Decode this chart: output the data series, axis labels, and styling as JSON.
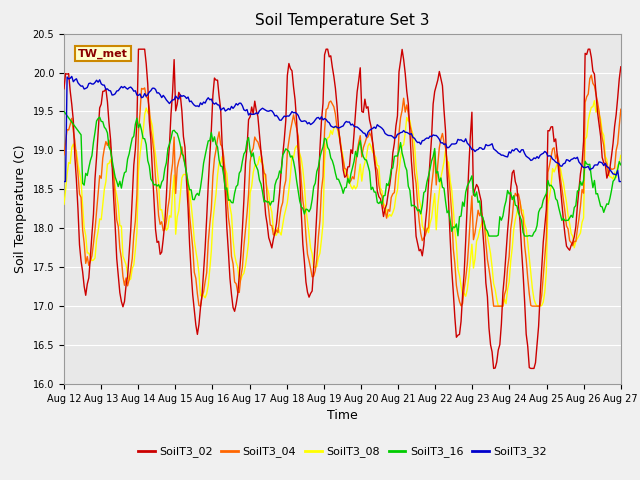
{
  "title": "Soil Temperature Set 3",
  "xlabel": "Time",
  "ylabel": "Soil Temperature (C)",
  "ylim": [
    16.0,
    20.5
  ],
  "ytick_labels": [
    "16.0",
    "16.5",
    "17.0",
    "17.5",
    "18.0",
    "18.5",
    "19.0",
    "19.5",
    "20.0",
    "20.5"
  ],
  "ytick_values": [
    16.0,
    16.5,
    17.0,
    17.5,
    18.0,
    18.5,
    19.0,
    19.5,
    20.0,
    20.5
  ],
  "xtick_labels": [
    "Aug 12",
    "Aug 13",
    "Aug 14",
    "Aug 15",
    "Aug 16",
    "Aug 17",
    "Aug 18",
    "Aug 19",
    "Aug 20",
    "Aug 21",
    "Aug 22",
    "Aug 23",
    "Aug 24",
    "Aug 25",
    "Aug 26",
    "Aug 27"
  ],
  "colors": {
    "SoilT3_02": "#cc0000",
    "SoilT3_04": "#ff6600",
    "SoilT3_08": "#ffff00",
    "SoilT3_16": "#00cc00",
    "SoilT3_32": "#0000cc"
  },
  "annotation_text": "TW_met",
  "title_fontsize": 11,
  "axis_label_fontsize": 9,
  "tick_fontsize": 7,
  "legend_fontsize": 8,
  "line_width": 1.0,
  "fig_bg": "#f0f0f0",
  "ax_bg": "#e8e8e8",
  "grid_color": "#ffffff"
}
